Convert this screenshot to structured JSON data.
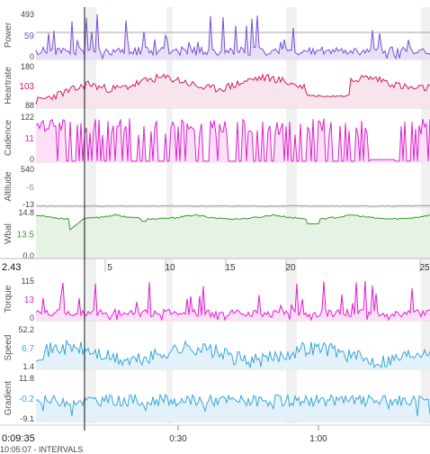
{
  "chart_data": [
    {
      "type": "line",
      "title": "",
      "ylabel": "Power",
      "ticks": [
        "493",
        "0"
      ],
      "current": "59",
      "ylim": [
        0,
        493
      ],
      "color": "#7a4fd6",
      "fill": "#e8e0f8",
      "seed": 11,
      "mode": "spiky"
    },
    {
      "type": "line",
      "title": "",
      "ylabel": "Heartrate",
      "ticks": [
        "180",
        "88"
      ],
      "current": "103",
      "ylim": [
        88,
        180
      ],
      "color": "#d01e63",
      "fill": "#f8e4ec",
      "seed": 23,
      "mode": "hr"
    },
    {
      "type": "line",
      "title": "",
      "ylabel": "Cadence",
      "ticks": [
        "122",
        "0"
      ],
      "current": "11",
      "ylim": [
        0,
        122
      ],
      "color": "#e020d0",
      "fill": "#fbe0f8",
      "seed": 37,
      "mode": "cadence"
    },
    {
      "type": "line",
      "title": "",
      "ylabel": "Altitude",
      "ticks": [
        "540",
        "-13"
      ],
      "current": "-6",
      "ylim": [
        -13,
        540
      ],
      "color": "#999999",
      "fill": "#eeeeee",
      "seed": 41,
      "mode": "flat"
    },
    {
      "type": "line",
      "title": "",
      "ylabel": "Wbal",
      "ticks": [
        "14.8",
        "0.0"
      ],
      "current": "13.5",
      "ylim": [
        0,
        14.8
      ],
      "color": "#3a9a30",
      "fill": "#e6f2e3",
      "seed": 53,
      "mode": "wbal"
    },
    {
      "type": "line",
      "title": "",
      "ylabel": "Torque",
      "ticks": [
        "115",
        "0"
      ],
      "current": "13",
      "ylim": [
        0,
        115
      ],
      "color": "#e020d0",
      "fill": "#fbe0f8",
      "seed": 61,
      "mode": "spiky"
    },
    {
      "type": "line",
      "title": "",
      "ylabel": "Speed",
      "ticks": [
        "52.2",
        "1.4"
      ],
      "current": "6.7",
      "ylim": [
        1.4,
        52.2
      ],
      "color": "#3aa6d8",
      "fill": "#e3f2fa",
      "seed": 71,
      "mode": "speed"
    },
    {
      "type": "line",
      "title": "",
      "ylabel": "Gradient",
      "ticks": [
        "11.8",
        "-9.1"
      ],
      "current": "-0.2",
      "ylim": [
        -9.1,
        11.8
      ],
      "color": "#3aa6d8",
      "fill": "#e3f2fa",
      "seed": 83,
      "mode": "gradient"
    }
  ],
  "interval_axis": {
    "start": "2.43",
    "labels": [
      "5",
      "10",
      "15",
      "20",
      "25"
    ]
  },
  "time_axis": {
    "labels": [
      "0:30",
      "1:00"
    ]
  },
  "cursor_time": "0:09:35",
  "footer_text": "10:05:07 - INTERVALS"
}
